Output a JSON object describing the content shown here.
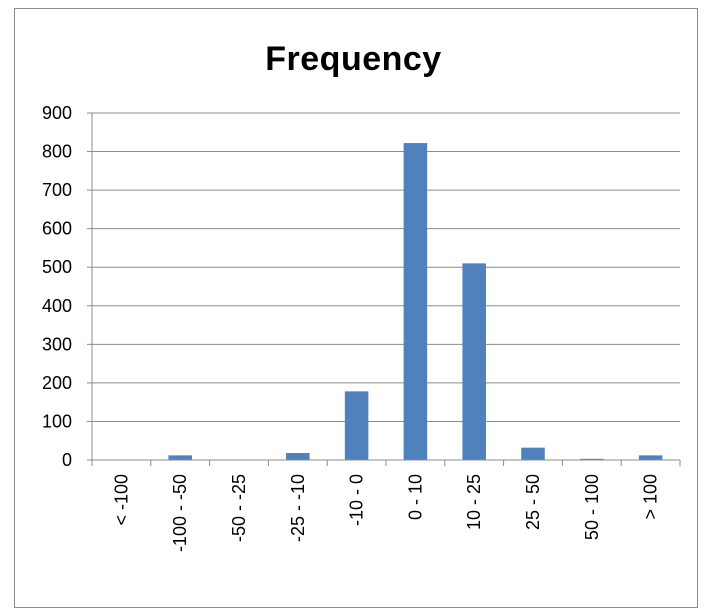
{
  "chart_data": {
    "type": "bar",
    "title": "Frequency",
    "xlabel": "",
    "ylabel": "",
    "categories": [
      "< -100",
      "-100 - -50",
      "-50 - -25",
      "-25 - -10",
      "-10 - 0",
      "0 - 10",
      "10 - 25",
      "25 - 50",
      "50 - 100",
      "> 100"
    ],
    "values": [
      0,
      12,
      0,
      18,
      178,
      822,
      510,
      32,
      3,
      12
    ],
    "ylim": [
      0,
      900
    ],
    "yticks": [
      "0",
      "100",
      "200",
      "300",
      "400",
      "500",
      "600",
      "700",
      "800",
      "900"
    ],
    "grid": "horizontal",
    "legend": "none",
    "bar_color": "#4f81bd"
  }
}
